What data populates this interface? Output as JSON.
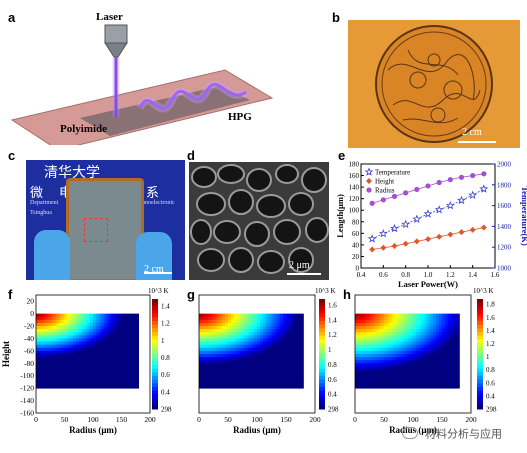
{
  "panels": {
    "a": {
      "label": "a",
      "laser_label": "Laser",
      "substrate_label": "Polyimide",
      "product_label": "HPG"
    },
    "b": {
      "label": "b",
      "scale": "2 cm"
    },
    "c": {
      "label": "c",
      "scale": "2 cm",
      "banner_cn": "清华大学",
      "banner_cn2": "微电子学系",
      "banner_en1": "Department",
      "banner_en2": "Tsinghua",
      "banner_en3": "Nanoelectronic"
    },
    "d": {
      "label": "d",
      "scale": "2 μm"
    },
    "e": {
      "label": "e"
    },
    "f": {
      "label": "f"
    },
    "g": {
      "label": "g"
    },
    "h": {
      "label": "h"
    }
  },
  "chart_data": [
    {
      "type": "line",
      "panel": "e",
      "xlabel": "Laser Power(W)",
      "ylabel": "Length(μm)",
      "y2label": "Temperature(K)",
      "xlim": [
        0.4,
        1.6
      ],
      "ylim": [
        0,
        180
      ],
      "y2lim": [
        1000,
        2000
      ],
      "xticks": [
        "0.4",
        "0.6",
        "0.8",
        "1.0",
        "1.2",
        "1.4",
        "1.6"
      ],
      "yticks": [
        "0",
        "20",
        "40",
        "60",
        "80",
        "100",
        "120",
        "140",
        "160",
        "180"
      ],
      "y2ticks": [
        "1000",
        "1200",
        "1400",
        "1600",
        "1800",
        "2000"
      ],
      "x": [
        0.5,
        0.6,
        0.7,
        0.8,
        0.9,
        1.0,
        1.1,
        1.2,
        1.3,
        1.4,
        1.5
      ],
      "series": [
        {
          "name": "Temperature",
          "axis": "y2",
          "marker": "star",
          "color": "#3b3fd0",
          "values": [
            1280,
            1330,
            1380,
            1420,
            1470,
            1520,
            1560,
            1600,
            1650,
            1700,
            1760
          ]
        },
        {
          "name": "Height",
          "axis": "y",
          "marker": "diamond",
          "color": "#e0572a",
          "values": [
            32,
            35,
            38,
            42,
            46,
            50,
            54,
            58,
            62,
            66,
            70
          ]
        },
        {
          "name": "Radius",
          "axis": "y",
          "marker": "circle",
          "color": "#a64fd0",
          "values": [
            112,
            118,
            124,
            130,
            136,
            142,
            148,
            153,
            157,
            160,
            163
          ]
        }
      ],
      "legend": "top-left"
    },
    {
      "type": "heatmap",
      "panel": "f",
      "xlabel": "Radius (μm)",
      "ylabel": "Height",
      "xticks": [
        "0",
        "50",
        "100",
        "150",
        "200"
      ],
      "yticks": [
        "20",
        "0",
        "-20",
        "-40",
        "-60",
        "-80",
        "-100",
        "-120",
        "-140",
        "-160"
      ],
      "xlim": [
        0,
        200
      ],
      "ylim": [
        -160,
        30
      ],
      "colorbar_title": "10^3 K",
      "colorbar_ticks": [
        "298",
        "0.4",
        "0.6",
        "0.8",
        "1",
        "1.2",
        "1.4"
      ],
      "hot_radius": 130,
      "hot_depth": 60
    },
    {
      "type": "heatmap",
      "panel": "g",
      "xlabel": "Radius (μm)",
      "ylabel": "",
      "xticks": [
        "0",
        "50",
        "100",
        "150",
        "200"
      ],
      "xlim": [
        0,
        200
      ],
      "ylim": [
        -160,
        30
      ],
      "colorbar_title": "10^3 K",
      "colorbar_ticks": [
        "298",
        "0.4",
        "0.6",
        "0.8",
        "1",
        "1.2",
        "1.4",
        "1.6"
      ],
      "hot_radius": 145,
      "hot_depth": 70
    },
    {
      "type": "heatmap",
      "panel": "h",
      "xlabel": "Radius (μm)",
      "ylabel": "",
      "xticks": [
        "0",
        "50",
        "100",
        "150",
        "200"
      ],
      "xlim": [
        0,
        200
      ],
      "ylim": [
        -160,
        30
      ],
      "colorbar_title": "10^3 K",
      "colorbar_ticks": [
        "298",
        "0.4",
        "0.6",
        "0.8",
        "1",
        "1.2",
        "1.4",
        "1.6",
        "1.8"
      ],
      "hot_radius": 160,
      "hot_depth": 80
    }
  ],
  "watermark": "材料分析与应用"
}
